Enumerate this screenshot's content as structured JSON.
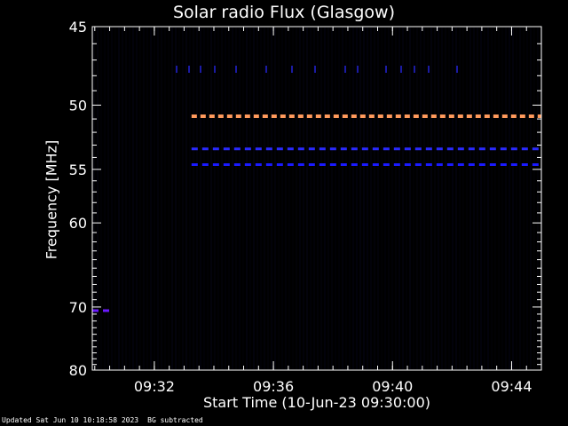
{
  "chart_data": {
    "type": "heatmap",
    "title": "Solar radio Flux (Glasgow)",
    "xlabel": "Start Time (10-Jun-23 09:30:00)",
    "ylabel": "Frequency [MHz]",
    "x_ticks": [
      "09:32",
      "09:36",
      "09:40",
      "09:44"
    ],
    "y_ticks": [
      45,
      50,
      55,
      60,
      70,
      80
    ],
    "xlim": [
      "09:29:55",
      "09:45:00"
    ],
    "ylim": [
      80,
      45
    ],
    "y_scale": "reciprocal",
    "background_color": "#000000",
    "signals": [
      {
        "frequency_mhz": 50.8,
        "start": "09:33:15",
        "end": "09:45:00",
        "style": "dashed",
        "color": "#ff9a5c"
      },
      {
        "frequency_mhz": 53.3,
        "start": "09:33:15",
        "end": "09:45:00",
        "style": "dashed",
        "color": "#2a2aff"
      },
      {
        "frequency_mhz": 54.6,
        "start": "09:33:15",
        "end": "09:45:00",
        "style": "dashed",
        "color": "#1a1aff"
      },
      {
        "frequency_mhz": 70.5,
        "start": "09:29:55",
        "end": "09:30:35",
        "style": "dashed",
        "color": "#6a1aff"
      }
    ]
  },
  "footer": {
    "updated": "Updated Sat Jun 10 10:18:58 2023",
    "note": "BG subtracted"
  }
}
